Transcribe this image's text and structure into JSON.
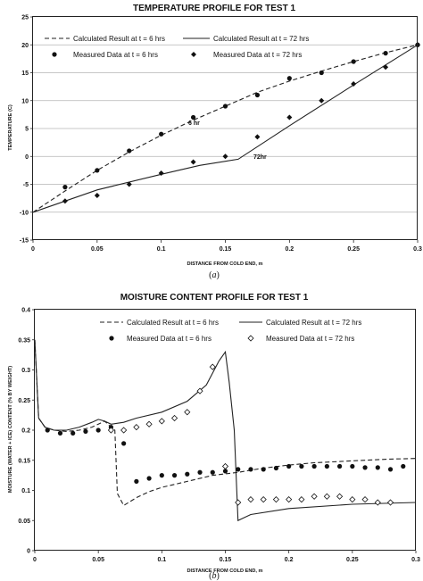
{
  "chart_data": [
    {
      "type": "line",
      "title": "TEMPERATURE PROFILE FOR TEST 1",
      "xlabel": "DISTANCE FROM COLD END, m",
      "ylabel": "TEMPERATURE (C)",
      "xlim": [
        0,
        0.3
      ],
      "ylim": [
        -15,
        25
      ],
      "xticks": [
        "0",
        "0.05",
        "0.1",
        "0.15",
        "0.2",
        "0.25",
        "0.3"
      ],
      "yticks": [
        "-15",
        "-10",
        "-5",
        "0",
        "5",
        "10",
        "15",
        "20",
        "25"
      ],
      "grid": "horizontal",
      "legend": "top",
      "panel_caption": "(a)",
      "annotations": [
        {
          "text": "6 hr",
          "x": 0.12,
          "y": 12.3
        },
        {
          "text": "72hr",
          "x": 0.16,
          "y": -0.2
        }
      ],
      "series": [
        {
          "name": "Calculated Result at t = 6 hrs",
          "style": "dashed",
          "x": [
            0,
            0.025,
            0.05,
            0.075,
            0.1,
            0.125,
            0.15,
            0.175,
            0.2,
            0.225,
            0.25,
            0.275,
            0.3
          ],
          "y": [
            -10,
            -6.2,
            -2.5,
            0.8,
            3.8,
            6.5,
            9.0,
            11.5,
            13.5,
            15.3,
            17.0,
            18.6,
            20
          ]
        },
        {
          "name": "Calculated Result at t = 72 hrs",
          "style": "solid",
          "x": [
            0,
            0.05,
            0.1,
            0.13,
            0.16,
            0.2,
            0.25,
            0.3
          ],
          "y": [
            -10,
            -6.0,
            -3.2,
            -1.6,
            -0.5,
            5.5,
            12.8,
            20
          ]
        },
        {
          "name": "Measured Data at t = 6 hrs",
          "marker": "circle",
          "x": [
            0.025,
            0.05,
            0.075,
            0.1,
            0.125,
            0.15,
            0.175,
            0.2,
            0.225,
            0.25,
            0.275,
            0.3
          ],
          "y": [
            -5.5,
            -2.5,
            1.0,
            4.0,
            7.0,
            9.0,
            11.0,
            14.0,
            15.0,
            17.0,
            18.5,
            20.0
          ]
        },
        {
          "name": "Measured Data at t = 72 hrs",
          "marker": "diamond",
          "x": [
            0.025,
            0.05,
            0.075,
            0.1,
            0.125,
            0.15,
            0.175,
            0.2,
            0.225,
            0.25,
            0.275,
            0.3
          ],
          "y": [
            -8.0,
            -7.0,
            -5.0,
            -3.0,
            -1.0,
            0.0,
            3.5,
            7.0,
            10.0,
            13.0,
            16.0,
            20.0
          ]
        }
      ]
    },
    {
      "type": "line",
      "title": "MOISTURE CONTENT PROFILE FOR TEST 1",
      "xlabel": "DISTANCE FROM COLD END, m",
      "ylabel": "MOISTURE (WATER + ICE) CONTENT (% BY WEIGHT)",
      "xlim": [
        0,
        0.3
      ],
      "ylim": [
        0,
        0.4
      ],
      "xticks": [
        "0",
        "0.05",
        "0.1",
        "0.15",
        "0.2",
        "0.25",
        "0.3"
      ],
      "yticks": [
        "0",
        "0.05",
        "0.1",
        "0.15",
        "0.2",
        "0.25",
        "0.3",
        "0.35",
        "0.4"
      ],
      "grid": "none",
      "legend": "top",
      "panel_caption": "(b)",
      "series": [
        {
          "name": "Calculated Result at t = 6 hrs",
          "style": "dashed",
          "x": [
            0,
            0.003,
            0.008,
            0.015,
            0.025,
            0.035,
            0.045,
            0.05,
            0.055,
            0.06,
            0.063,
            0.065,
            0.07,
            0.08,
            0.09,
            0.1,
            0.12,
            0.14,
            0.16,
            0.18,
            0.2,
            0.22,
            0.25,
            0.28,
            0.3
          ],
          "y": [
            0.35,
            0.22,
            0.205,
            0.2,
            0.198,
            0.2,
            0.205,
            0.21,
            0.215,
            0.205,
            0.2,
            0.095,
            0.075,
            0.088,
            0.098,
            0.105,
            0.115,
            0.125,
            0.13,
            0.137,
            0.142,
            0.146,
            0.149,
            0.152,
            0.153
          ]
        },
        {
          "name": "Calculated Result at t = 72 hrs",
          "style": "solid",
          "x": [
            0,
            0.003,
            0.008,
            0.015,
            0.025,
            0.035,
            0.045,
            0.05,
            0.055,
            0.06,
            0.07,
            0.08,
            0.1,
            0.12,
            0.135,
            0.145,
            0.15,
            0.153,
            0.157,
            0.16,
            0.17,
            0.2,
            0.25,
            0.3
          ],
          "y": [
            0.35,
            0.22,
            0.205,
            0.2,
            0.2,
            0.205,
            0.213,
            0.218,
            0.215,
            0.21,
            0.213,
            0.22,
            0.23,
            0.248,
            0.275,
            0.315,
            0.33,
            0.28,
            0.2,
            0.05,
            0.06,
            0.07,
            0.077,
            0.08
          ]
        },
        {
          "name": "Measured Data at t = 6 hrs",
          "marker": "circle",
          "x": [
            0.01,
            0.02,
            0.03,
            0.04,
            0.05,
            0.06,
            0.07,
            0.08,
            0.09,
            0.1,
            0.11,
            0.12,
            0.13,
            0.14,
            0.15,
            0.16,
            0.17,
            0.18,
            0.19,
            0.2,
            0.21,
            0.22,
            0.23,
            0.24,
            0.25,
            0.26,
            0.27,
            0.28,
            0.29
          ],
          "y": [
            0.2,
            0.195,
            0.195,
            0.198,
            0.2,
            0.205,
            0.178,
            0.115,
            0.12,
            0.125,
            0.125,
            0.127,
            0.13,
            0.13,
            0.132,
            0.135,
            0.135,
            0.135,
            0.137,
            0.14,
            0.14,
            0.14,
            0.14,
            0.14,
            0.14,
            0.138,
            0.138,
            0.135,
            0.14
          ]
        },
        {
          "name": "Measured Data at t = 72 hrs",
          "marker": "diamond-open",
          "x": [
            0.06,
            0.07,
            0.08,
            0.09,
            0.1,
            0.11,
            0.12,
            0.13,
            0.14,
            0.15,
            0.16,
            0.17,
            0.18,
            0.19,
            0.2,
            0.21,
            0.22,
            0.23,
            0.24,
            0.25,
            0.26,
            0.27,
            0.28
          ],
          "y": [
            0.2,
            0.2,
            0.205,
            0.21,
            0.215,
            0.22,
            0.23,
            0.265,
            0.305,
            0.14,
            0.08,
            0.085,
            0.085,
            0.085,
            0.085,
            0.085,
            0.09,
            0.09,
            0.09,
            0.085,
            0.085,
            0.08,
            0.08
          ]
        }
      ]
    }
  ]
}
